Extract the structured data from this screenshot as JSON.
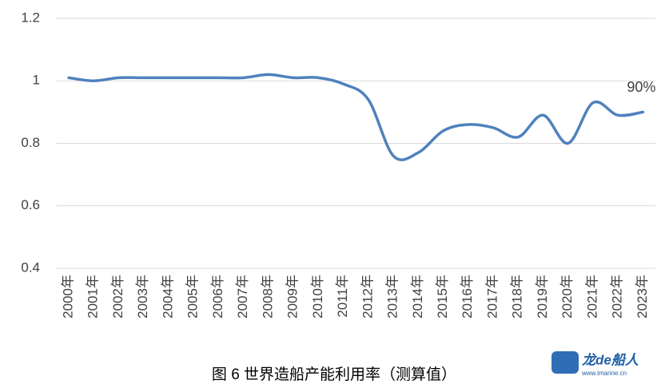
{
  "chart_data": {
    "type": "line",
    "title": "图 6 世界造船产能利用率（测算值）",
    "categories": [
      "2000年",
      "2001年",
      "2002年",
      "2003年",
      "2004年",
      "2005年",
      "2006年",
      "2007年",
      "2008年",
      "2009年",
      "2010年",
      "2011年",
      "2012年",
      "2013年",
      "2014年",
      "2015年",
      "2016年",
      "2017年",
      "2018年",
      "2019年",
      "2020年",
      "2021年",
      "2022年",
      "2023年"
    ],
    "values": [
      1.01,
      1.0,
      1.01,
      1.01,
      1.01,
      1.01,
      1.01,
      1.01,
      1.02,
      1.01,
      1.01,
      0.99,
      0.94,
      0.76,
      0.77,
      0.84,
      0.86,
      0.85,
      0.82,
      0.89,
      0.8,
      0.93,
      0.89,
      0.9
    ],
    "value_labels": [
      null,
      null,
      null,
      null,
      null,
      null,
      null,
      null,
      null,
      null,
      null,
      null,
      null,
      null,
      null,
      null,
      null,
      null,
      null,
      null,
      null,
      null,
      null,
      "90%"
    ],
    "color": "#4f81bd",
    "ylim": [
      0.4,
      1.2
    ],
    "yticks": [
      0.4,
      0.6,
      0.8,
      1,
      1.2
    ],
    "grid": true,
    "smooth": true
  },
  "watermark": {
    "brand": "龙de船人",
    "url": "www.imarine.cn"
  }
}
